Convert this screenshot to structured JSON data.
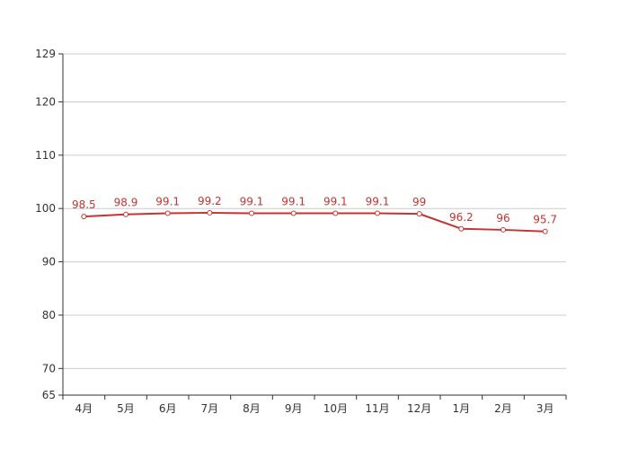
{
  "chart_data": {
    "type": "line",
    "title": "",
    "xlabel": "",
    "ylabel": "",
    "categories": [
      "4月",
      "5月",
      "6月",
      "7月",
      "8月",
      "9月",
      "10月",
      "11月",
      "12月",
      "1月",
      "2月",
      "3月"
    ],
    "series": [
      {
        "values": [
          98.5,
          98.9,
          99.1,
          99.2,
          99.1,
          99.1,
          99.1,
          99.1,
          99,
          96.2,
          96,
          95.7
        ],
        "labels": [
          "98.5",
          "98.9",
          "99.1",
          "99.2",
          "99.1",
          "99.1",
          "99.1",
          "99.1",
          "99",
          "96.2",
          "96",
          "95.7"
        ],
        "color": "#c23531"
      }
    ],
    "ylim": [
      65,
      129
    ],
    "yticks": [
      65,
      70,
      80,
      90,
      100,
      110,
      120,
      129
    ],
    "ytick_labels": [
      "65",
      "70",
      "80",
      "90",
      "100",
      "110",
      "120",
      "129"
    ],
    "grid": true,
    "colors": {
      "line": "#c23531",
      "grid": "#cccccc",
      "axis": "#333333",
      "marker_fill": "#ffffff"
    }
  }
}
